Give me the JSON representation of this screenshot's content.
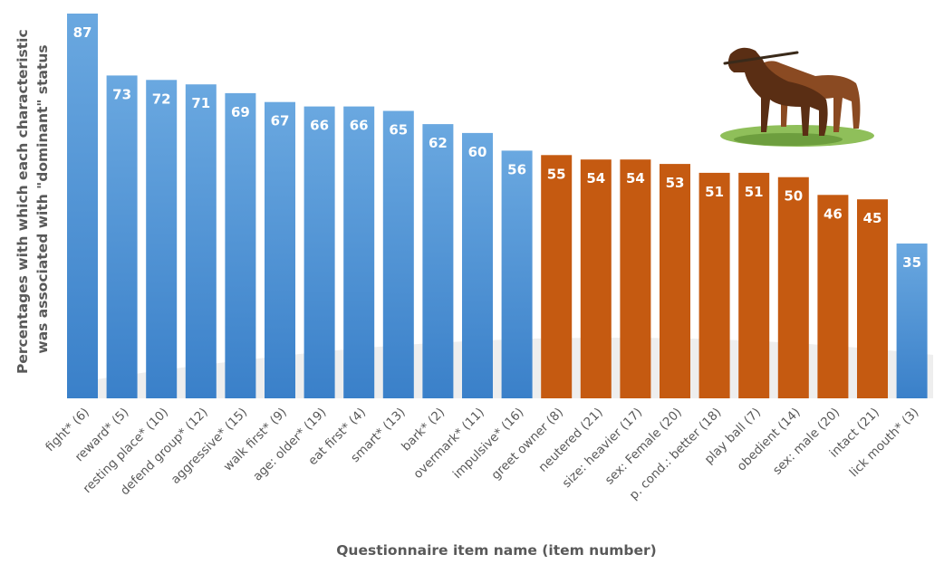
{
  "chart_data": {
    "type": "bar",
    "title": "",
    "xlabel": "Questionnaire item name (item number)",
    "ylabel_lines": [
      "Percentages with which each characteristic",
      "was associated with \"dominant\" status"
    ],
    "ylim": [
      0,
      87
    ],
    "categories": [
      "fight* (6)",
      "reward* (5)",
      "resting place* (10)",
      "defend group* (12)",
      "aggressive* (15)",
      "walk first* (9)",
      "age: older* (19)",
      "eat first* (4)",
      "smart* (13)",
      "bark* (2)",
      "overmark* (11)",
      "impulsive* (16)",
      "greet owner (8)",
      "neutered (21)",
      "size: heavier (17)",
      "sex: Female (20)",
      "p. cond.: better (18)",
      "play ball (7)",
      "obedient (14)",
      "sex: male (20)",
      "intact (21)",
      "lick mouth* (3)"
    ],
    "values": [
      87,
      73,
      72,
      71,
      69,
      67,
      66,
      66,
      65,
      62,
      60,
      56,
      55,
      54,
      54,
      53,
      51,
      51,
      50,
      46,
      45,
      35
    ],
    "bar_groups": [
      "blue",
      "blue",
      "blue",
      "blue",
      "blue",
      "blue",
      "blue",
      "blue",
      "blue",
      "blue",
      "blue",
      "blue",
      "orange",
      "orange",
      "orange",
      "orange",
      "orange",
      "orange",
      "orange",
      "orange",
      "orange",
      "blue"
    ],
    "colors": {
      "blue": "#5b9bd5",
      "blue_light": "#6aa8e0",
      "blue_dark": "#3a80c9",
      "orange": "#c55a11"
    },
    "data_labels": true,
    "grid": false,
    "legend": false
  },
  "decoration": {
    "image": "two-dogs-illustration"
  }
}
